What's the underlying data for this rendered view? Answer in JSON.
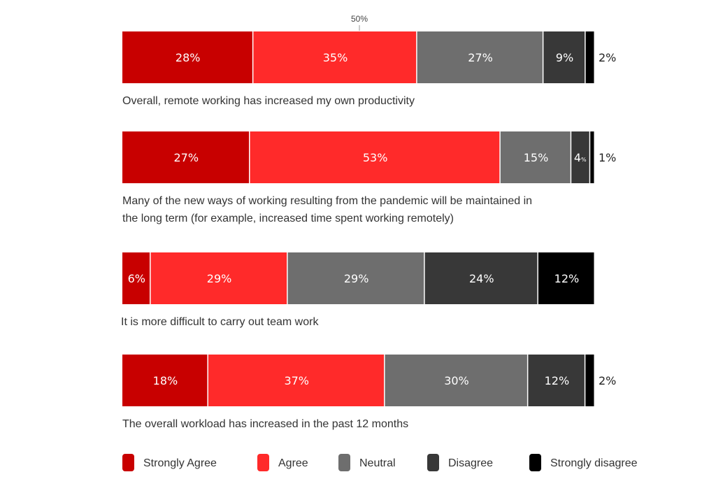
{
  "chart_data": {
    "type": "bar",
    "orientation": "horizontal-stacked",
    "reference_line": {
      "value": 50,
      "label": "50%"
    },
    "series": [
      {
        "name": "Strongly Agree",
        "color": "#c80000"
      },
      {
        "name": "Agree",
        "color": "#ff2a2a"
      },
      {
        "name": "Neutral",
        "color": "#6e6e6e"
      },
      {
        "name": "Disagree",
        "color": "#383838"
      },
      {
        "name": "Strongly disagree",
        "color": "#000000"
      }
    ],
    "categories": [
      {
        "lines": [
          "Overall, remote working has increased my own productivity"
        ],
        "values": [
          28,
          35,
          27,
          9,
          2
        ]
      },
      {
        "lines": [
          "Many of the new ways of working resulting from the pandemic will be maintained in",
          "the long term (for example, increased time spent working remotely)"
        ],
        "values": [
          27,
          53,
          15,
          4,
          1
        ]
      },
      {
        "lines": [
          "It is more difficult to carry out team work"
        ],
        "values": [
          6,
          29,
          29,
          24,
          12
        ]
      },
      {
        "lines": [
          "The overall workload has increased in the past 12 months"
        ],
        "values": [
          18,
          37,
          30,
          12,
          2
        ]
      }
    ],
    "unit": "%",
    "legend_position": "bottom"
  }
}
